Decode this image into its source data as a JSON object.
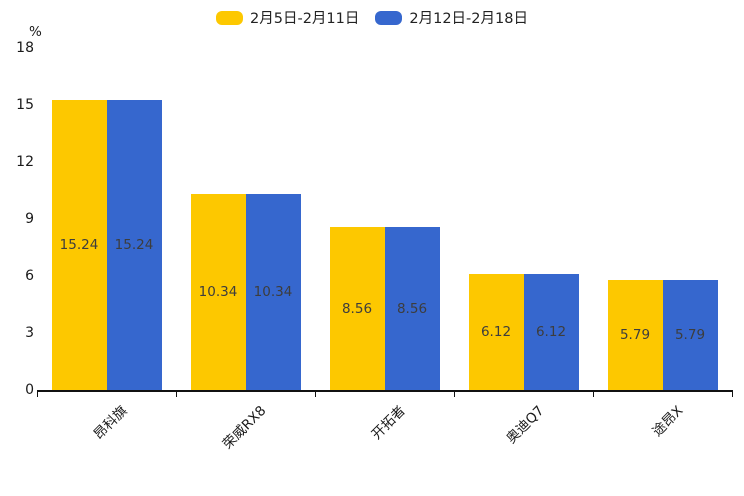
{
  "chart_data": {
    "type": "bar",
    "title": "",
    "xlabel": "",
    "ylabel": "%",
    "categories": [
      "昂科旗",
      "荣威RX8",
      "开拓者",
      "奥迪Q7",
      "途昂X"
    ],
    "series": [
      {
        "name": "2月5日-2月11日",
        "color": "#FDC800",
        "values": [
          15.24,
          10.34,
          8.56,
          6.12,
          5.79
        ]
      },
      {
        "name": "2月12日-2月18日",
        "color": "#3667CE",
        "values": [
          15.24,
          10.34,
          8.56,
          6.12,
          5.79
        ]
      }
    ],
    "ylim": [
      0,
      18
    ],
    "yticks": [
      0,
      3,
      6,
      9,
      12,
      15,
      18
    ],
    "grid": false,
    "legend_position": "top-center",
    "value_labels": "inside-center",
    "axis_color": "#111111",
    "background": "#ffffff"
  }
}
